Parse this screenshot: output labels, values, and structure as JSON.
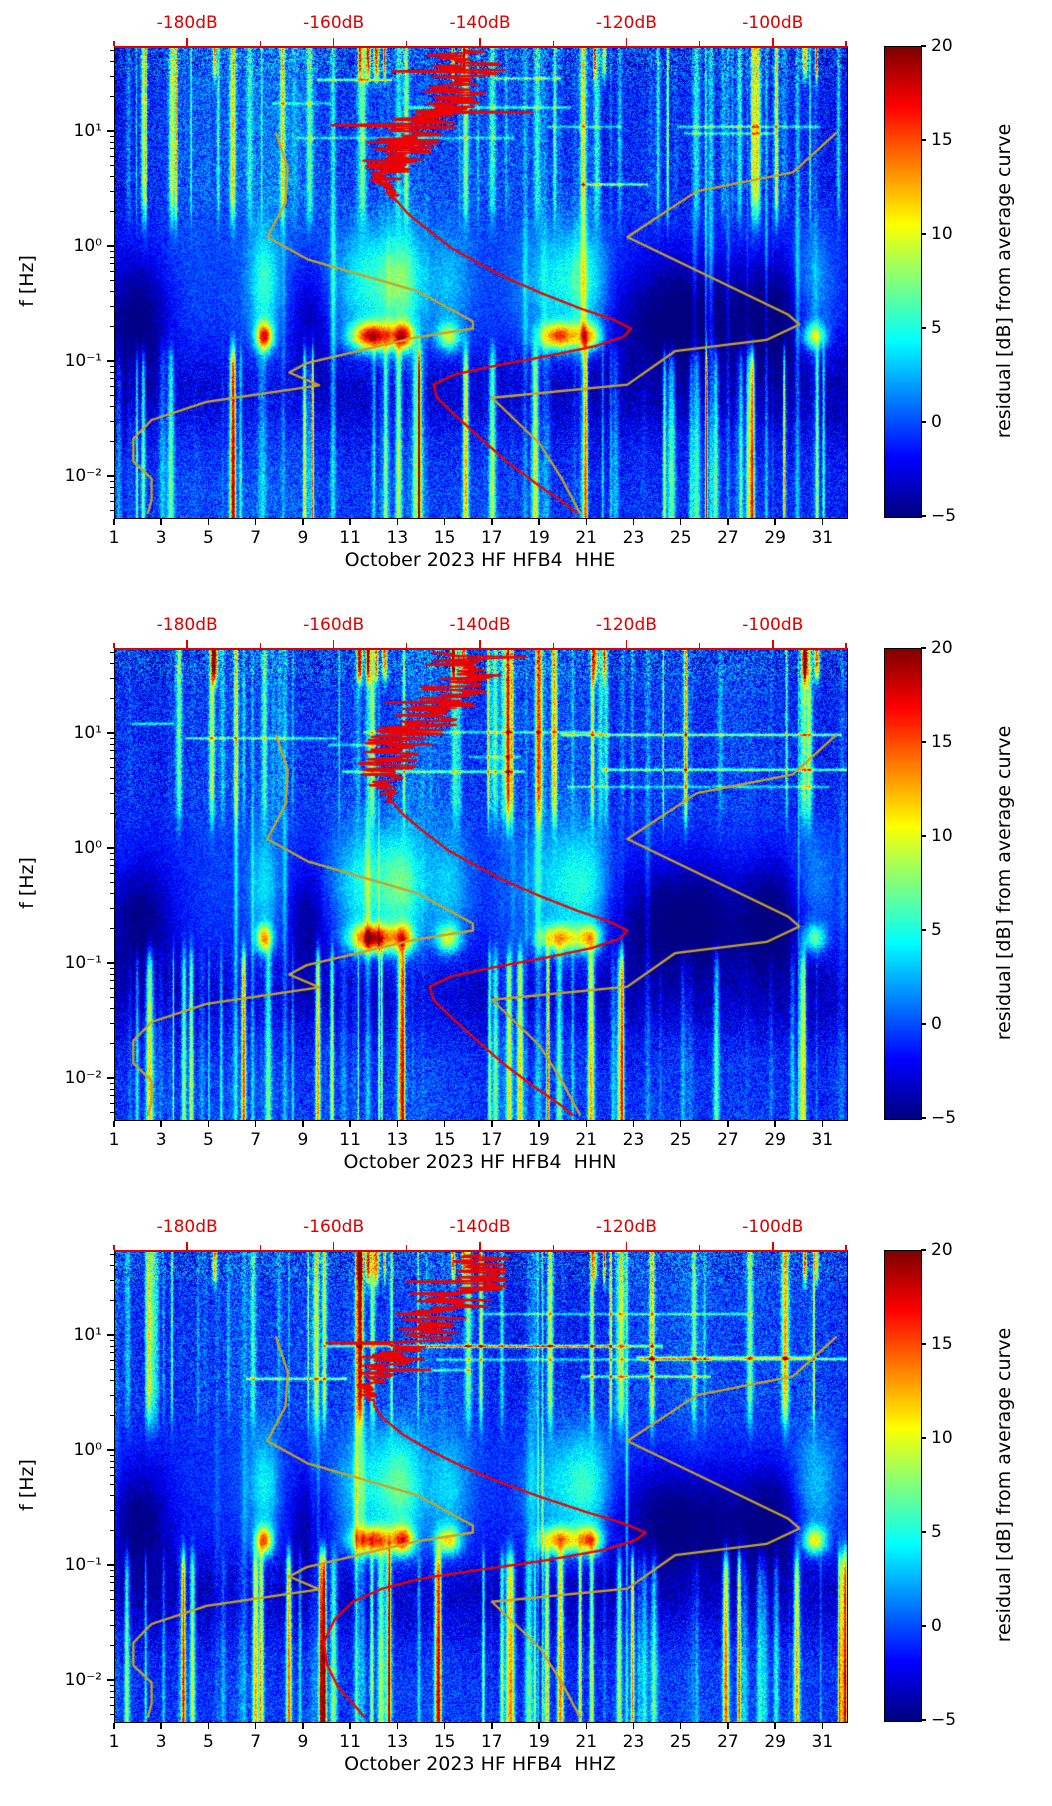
{
  "figure": {
    "colors": {
      "background": "#ffffff",
      "text": "#000000",
      "axis_red": "#e00000",
      "curve_red": "#ee0000",
      "curve_olive": "#c7a227"
    },
    "top_axis": {
      "tick_labels": [
        "-180dB",
        "-160dB",
        "-140dB",
        "-120dB",
        "-100dB"
      ],
      "tick_values": [
        -180,
        -160,
        -140,
        -120,
        -100
      ],
      "axis_min": -190,
      "axis_max": -90
    },
    "x_axis": {
      "tick_labels": [
        "1",
        "3",
        "5",
        "7",
        "9",
        "11",
        "13",
        "15",
        "17",
        "19",
        "21",
        "23",
        "25",
        "27",
        "29",
        "31"
      ],
      "tick_values": [
        1,
        3,
        5,
        7,
        9,
        11,
        13,
        15,
        17,
        19,
        21,
        23,
        25,
        27,
        29,
        31
      ],
      "min": 1,
      "max": 32
    },
    "y_axis": {
      "label": "f [Hz]",
      "tick_labels": [
        "10¹",
        "10⁰",
        "10⁻¹",
        "10⁻²"
      ],
      "tick_values": [
        10,
        1,
        0.1,
        0.01
      ],
      "scale": "log",
      "min": 0.0045,
      "max": 55
    },
    "colorbar": {
      "label": "residual [dB] from average curve",
      "tick_labels": [
        "20",
        "15",
        "10",
        "5",
        "0",
        "−5"
      ],
      "tick_values": [
        20,
        15,
        10,
        5,
        0,
        -5
      ],
      "min": -5,
      "max": 20,
      "colormap": "jet"
    }
  },
  "panels": [
    {
      "channel": "HHE",
      "xlabel": "October 2023 HF HFB4  HHE"
    },
    {
      "channel": "HHN",
      "xlabel": "October 2023 HF HFB4  HHN"
    },
    {
      "channel": "HHZ",
      "xlabel": "October 2023 HF HFB4  HHZ"
    }
  ],
  "curves": {
    "nlnm": {
      "label": "low noise model",
      "color_key": "curve_olive",
      "jitter_high_freq": false,
      "freq": [
        10,
        5,
        2.5,
        1.25,
        0.8,
        0.42,
        0.23,
        0.2,
        0.167,
        0.1,
        0.083,
        0.064,
        0.046,
        0.032,
        0.022,
        0.014,
        0.0099,
        0.0065,
        0.005
      ],
      "db": [
        -168.0,
        -166.4,
        -166.7,
        -169.2,
        -163.7,
        -148.6,
        -141.1,
        -141.1,
        -149.0,
        -163.8,
        -166.2,
        -162.1,
        -177.5,
        -185.0,
        -187.5,
        -187.5,
        -185.0,
        -185.0,
        -185.5
      ]
    },
    "nhnm": {
      "label": "high noise model",
      "color_key": "curve_olive",
      "jitter_high_freq": false,
      "freq": [
        10,
        4.55,
        3.13,
        1.25,
        0.263,
        0.217,
        0.159,
        0.127,
        0.065,
        0.05,
        0.02,
        0.01,
        0.005
      ],
      "db": [
        -91.5,
        -97.4,
        -110.5,
        -120.0,
        -98.0,
        -96.5,
        -101.0,
        -113.5,
        -120.0,
        -138.5,
        -132.0,
        -129.0,
        -126.5
      ]
    },
    "median_hhe": {
      "label": "median PSD HHE",
      "color_key": "curve_red",
      "jitter_high_freq": true,
      "freq": [
        52,
        40,
        30,
        22,
        16,
        12,
        9,
        7,
        5,
        3.8,
        2.8,
        2.0,
        1.4,
        1.0,
        0.75,
        0.55,
        0.4,
        0.3,
        0.24,
        0.2,
        0.17,
        0.14,
        0.115,
        0.095,
        0.08,
        0.065,
        0.05,
        0.035,
        0.022,
        0.014,
        0.009,
        0.006,
        0.005
      ],
      "db": [
        -143,
        -142,
        -141.5,
        -144,
        -146,
        -148,
        -150,
        -151.5,
        -152.5,
        -153,
        -152,
        -150,
        -147,
        -144,
        -140.5,
        -136.5,
        -131.5,
        -126.5,
        -122,
        -119.5,
        -120.5,
        -124.5,
        -131,
        -138,
        -143.5,
        -146.5,
        -146,
        -143.5,
        -140,
        -136.5,
        -132.5,
        -128.5,
        -127
      ]
    },
    "median_hhn": {
      "label": "median PSD HHN",
      "color_key": "curve_red",
      "jitter_high_freq": true,
      "freq": [
        52,
        40,
        30,
        22,
        16,
        12,
        9,
        7,
        5,
        3.8,
        2.8,
        2.0,
        1.4,
        1.0,
        0.75,
        0.55,
        0.4,
        0.3,
        0.24,
        0.2,
        0.17,
        0.14,
        0.115,
        0.095,
        0.08,
        0.065,
        0.05,
        0.035,
        0.022,
        0.014,
        0.009,
        0.006,
        0.005
      ],
      "db": [
        -144,
        -143,
        -142,
        -144.5,
        -146.5,
        -148.5,
        -150.5,
        -152,
        -153,
        -153.5,
        -152.5,
        -150.5,
        -147.5,
        -144.5,
        -141,
        -137,
        -132,
        -127,
        -122.5,
        -120,
        -121,
        -125,
        -131.5,
        -138.5,
        -144,
        -147,
        -146.5,
        -144,
        -140.5,
        -137,
        -133,
        -129,
        -127.5
      ]
    },
    "median_hhz": {
      "label": "median PSD HHZ",
      "color_key": "curve_red",
      "jitter_high_freq": true,
      "freq": [
        52,
        40,
        30,
        22,
        16,
        12,
        9,
        7,
        5,
        3.8,
        2.8,
        2.0,
        1.4,
        1.0,
        0.75,
        0.55,
        0.4,
        0.3,
        0.24,
        0.2,
        0.17,
        0.14,
        0.115,
        0.095,
        0.08,
        0.065,
        0.05,
        0.035,
        0.022,
        0.014,
        0.009,
        0.006,
        0.005
      ],
      "db": [
        -141,
        -140.5,
        -140,
        -142.5,
        -144.5,
        -147,
        -149.5,
        -151.5,
        -153.5,
        -155,
        -155,
        -153.5,
        -150.5,
        -146.5,
        -142.5,
        -137.5,
        -131.5,
        -125.5,
        -120.5,
        -117.5,
        -119,
        -123.5,
        -131,
        -140,
        -148,
        -153.5,
        -157.5,
        -160,
        -161.5,
        -161,
        -159.5,
        -157,
        -156
      ]
    }
  },
  "chart_data": [
    {
      "type": "heatmap",
      "name": "spectrogram-hhe",
      "xlabel": "October 2023 HF HFB4  HHE",
      "x_unit": "day of month",
      "x_range": [
        1,
        32
      ],
      "x_ticks": [
        1,
        3,
        5,
        7,
        9,
        11,
        13,
        15,
        17,
        19,
        21,
        23,
        25,
        27,
        29,
        31
      ],
      "ylabel": "f [Hz]",
      "y_scale": "log",
      "y_range_hz": [
        0.0045,
        55
      ],
      "z_label": "residual [dB] from average curve",
      "z_range_db": [
        -5,
        20
      ],
      "colormap": "jet",
      "top_axis": {
        "unit": "dB",
        "range": [
          -190,
          -90
        ],
        "ticks": [
          -180,
          -160,
          -140,
          -120,
          -100
        ]
      },
      "overlays": [
        "nlnm",
        "nhnm",
        "median_hhe"
      ]
    },
    {
      "type": "heatmap",
      "name": "spectrogram-hhn",
      "xlabel": "October 2023 HF HFB4  HHN",
      "x_unit": "day of month",
      "x_range": [
        1,
        32
      ],
      "x_ticks": [
        1,
        3,
        5,
        7,
        9,
        11,
        13,
        15,
        17,
        19,
        21,
        23,
        25,
        27,
        29,
        31
      ],
      "ylabel": "f [Hz]",
      "y_scale": "log",
      "y_range_hz": [
        0.0045,
        55
      ],
      "z_label": "residual [dB] from average curve",
      "z_range_db": [
        -5,
        20
      ],
      "colormap": "jet",
      "top_axis": {
        "unit": "dB",
        "range": [
          -190,
          -90
        ],
        "ticks": [
          -180,
          -160,
          -140,
          -120,
          -100
        ]
      },
      "overlays": [
        "nlnm",
        "nhnm",
        "median_hhn"
      ]
    },
    {
      "type": "heatmap",
      "name": "spectrogram-hhz",
      "xlabel": "October 2023 HF HFB4  HHZ",
      "x_unit": "day of month",
      "x_range": [
        1,
        32
      ],
      "x_ticks": [
        1,
        3,
        5,
        7,
        9,
        11,
        13,
        15,
        17,
        19,
        21,
        23,
        25,
        27,
        29,
        31
      ],
      "ylabel": "f [Hz]",
      "y_scale": "log",
      "y_range_hz": [
        0.0045,
        55
      ],
      "z_label": "residual [dB] from average curve",
      "z_range_db": [
        -5,
        20
      ],
      "colormap": "jet",
      "top_axis": {
        "unit": "dB",
        "range": [
          -190,
          -90
        ],
        "ticks": [
          -180,
          -160,
          -140,
          -120,
          -100
        ]
      },
      "overlays": [
        "nlnm",
        "nhnm",
        "median_hhz"
      ]
    }
  ]
}
